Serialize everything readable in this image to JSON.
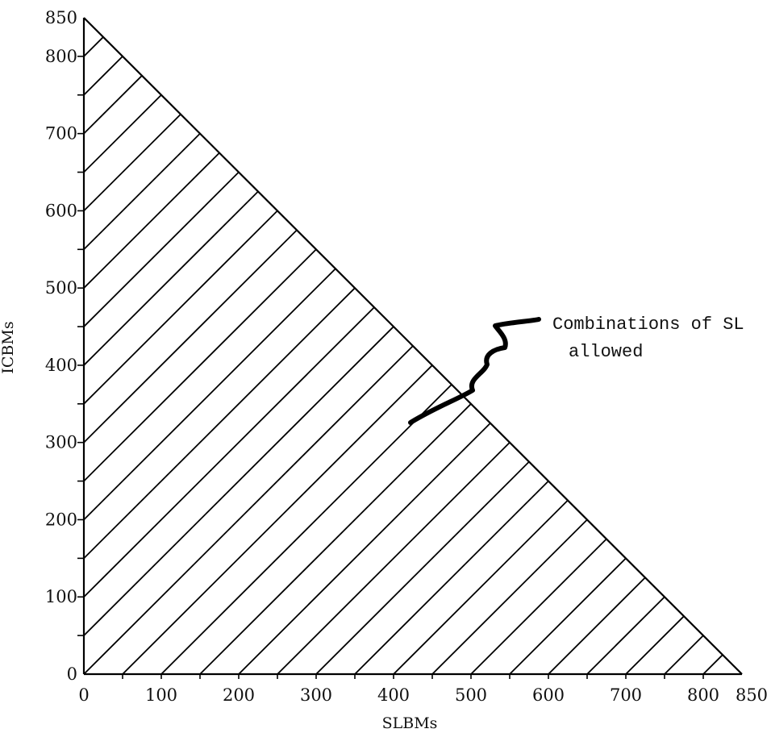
{
  "chart_data": {
    "type": "area",
    "title": "",
    "xlabel": "SLBMs",
    "ylabel": "ICBMs",
    "xlim": [
      0,
      850
    ],
    "ylim": [
      0,
      850
    ],
    "x_ticks": [
      "0",
      "100",
      "200",
      "300",
      "400",
      "500",
      "600",
      "700",
      "800",
      "850"
    ],
    "y_ticks": [
      "0",
      "100",
      "200",
      "300",
      "400",
      "500",
      "600",
      "700",
      "800",
      "850"
    ],
    "x_tick_values": [
      0,
      100,
      200,
      300,
      400,
      500,
      600,
      700,
      800,
      850
    ],
    "y_tick_values": [
      0,
      100,
      200,
      300,
      400,
      500,
      600,
      700,
      800,
      850
    ],
    "boundary": {
      "x": [
        0,
        850
      ],
      "y": [
        850,
        0
      ]
    },
    "hatch": {
      "spacing": 50,
      "direction": "diagonal"
    },
    "grid": false,
    "annotations": [
      {
        "text_lines": [
          "Combinations of SL",
          "allowed"
        ],
        "arrow_to": [
          420,
          325
        ]
      }
    ]
  }
}
